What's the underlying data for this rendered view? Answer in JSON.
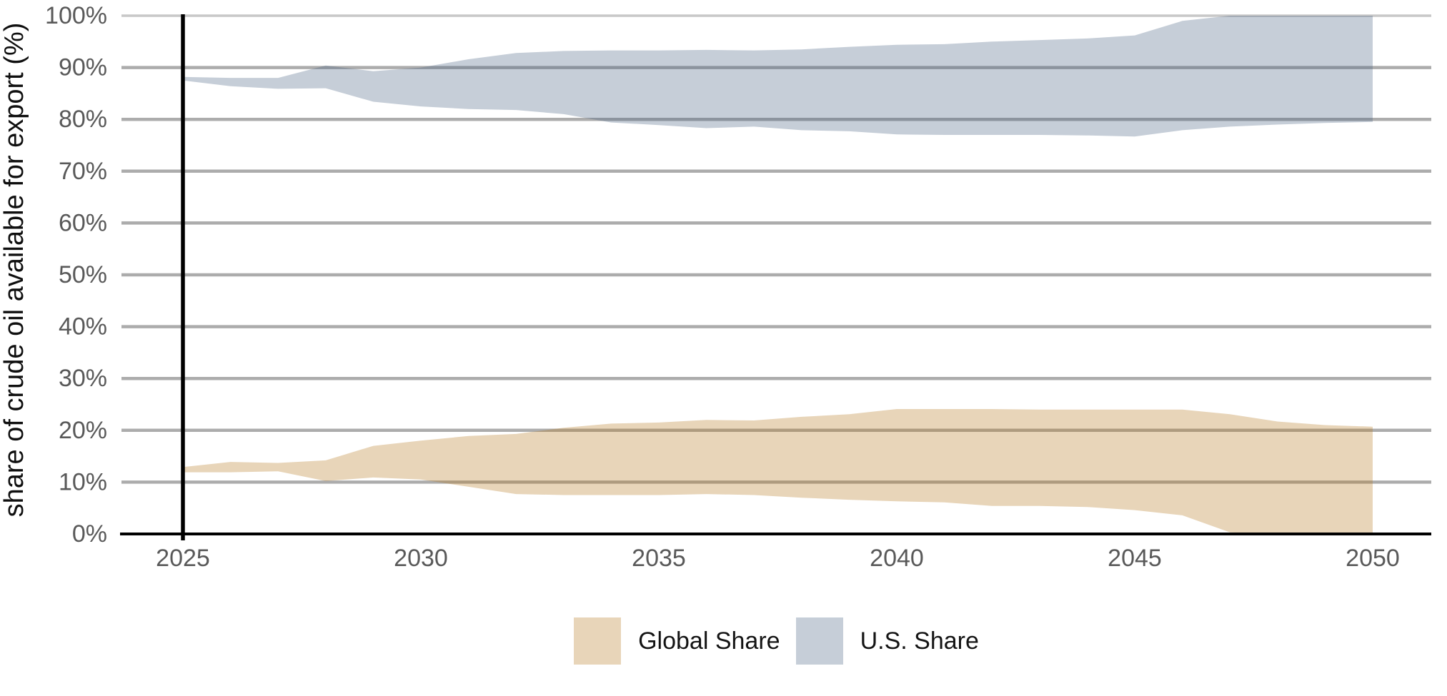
{
  "chart_data": {
    "type": "area",
    "title": "",
    "xlabel": "",
    "ylabel": "share of crude oil available for export (%)",
    "x": [
      2025,
      2026,
      2027,
      2028,
      2029,
      2030,
      2031,
      2032,
      2033,
      2034,
      2035,
      2036,
      2037,
      2038,
      2039,
      2040,
      2041,
      2042,
      2043,
      2044,
      2045,
      2046,
      2047,
      2048,
      2049,
      2050
    ],
    "xticks": [
      2025,
      2030,
      2035,
      2040,
      2045,
      2050
    ],
    "yticks": [
      0,
      10,
      20,
      30,
      40,
      50,
      60,
      70,
      80,
      90,
      100
    ],
    "ytick_suffix": "%",
    "xlim": [
      2025,
      2050
    ],
    "ylim": [
      0,
      100
    ],
    "grid": true,
    "legend_position": "bottom",
    "series": [
      {
        "name": "Global Share",
        "kind": "band",
        "color": "#e8d5b9",
        "lower": [
          11.9,
          11.9,
          12.1,
          10.2,
          10.9,
          10.5,
          9.1,
          7.7,
          7.5,
          7.5,
          7.5,
          7.7,
          7.5,
          7.0,
          6.6,
          6.3,
          6.1,
          5.4,
          5.4,
          5.2,
          4.6,
          3.6,
          0.3,
          0,
          0,
          0
        ],
        "upper": [
          12.9,
          13.9,
          13.7,
          14.2,
          17.0,
          18.0,
          18.9,
          19.3,
          20.5,
          21.3,
          21.5,
          22.0,
          21.9,
          22.6,
          23.1,
          24.1,
          24.1,
          24.1,
          24.0,
          24.0,
          24.0,
          24.0,
          23.1,
          21.7,
          21.0,
          20.7
        ]
      },
      {
        "name": "U.S. Share",
        "kind": "band",
        "color": "#c6ced8",
        "lower": [
          87.5,
          86.4,
          85.9,
          86.0,
          83.4,
          82.5,
          82.0,
          81.8,
          81.0,
          79.4,
          78.9,
          78.3,
          78.6,
          77.9,
          77.7,
          77.1,
          77.0,
          77.0,
          77.0,
          76.9,
          76.7,
          77.9,
          78.6,
          79.0,
          79.3,
          79.5
        ],
        "upper": [
          88.2,
          88.0,
          88.0,
          90.4,
          89.3,
          90.0,
          91.6,
          92.8,
          93.2,
          93.3,
          93.3,
          93.4,
          93.3,
          93.5,
          94.0,
          94.4,
          94.5,
          95.0,
          95.3,
          95.6,
          96.2,
          99.0,
          100,
          100,
          100,
          100
        ]
      }
    ],
    "annotations": [
      {
        "type": "vline",
        "x": 2025,
        "color": "#000000"
      }
    ]
  },
  "colors": {
    "background": "#ffffff",
    "gridline": "#acacac",
    "gridline_top": "#c8c8c8",
    "axis_line": "#000000",
    "tick_label": "#595959",
    "axis_title": "#0f0f0f",
    "legend_text": "#141414"
  }
}
